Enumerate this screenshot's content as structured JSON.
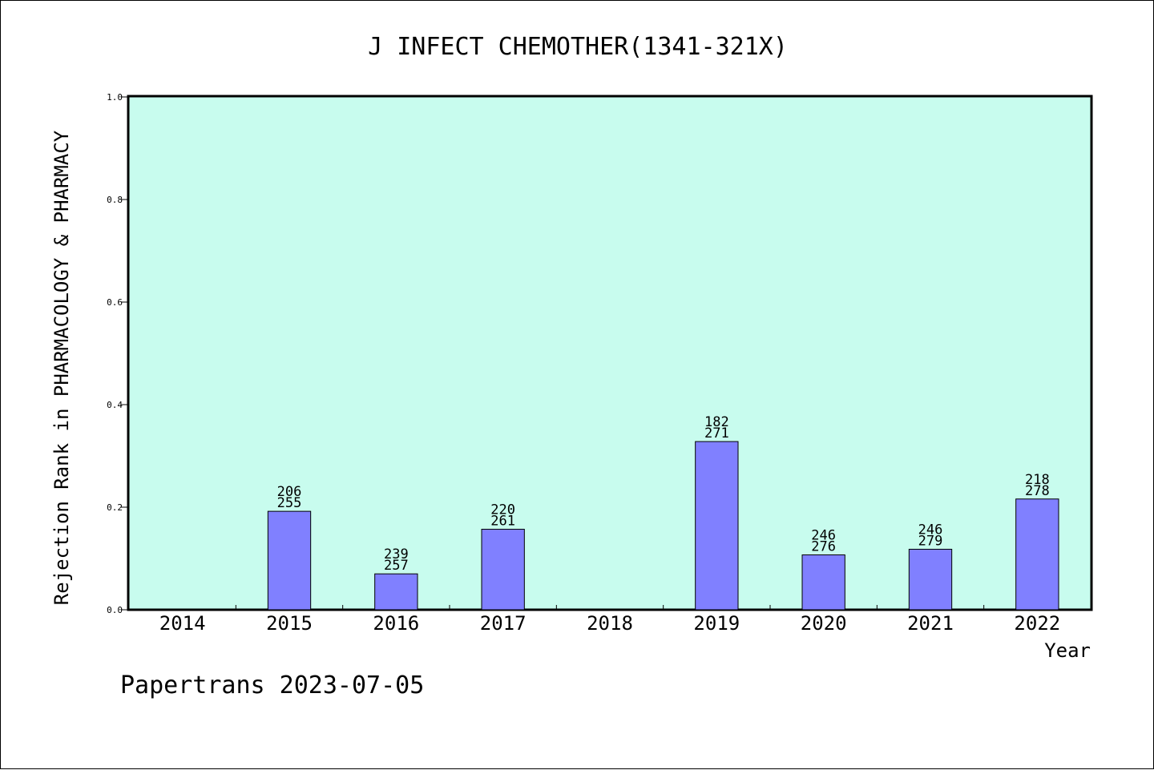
{
  "chart_data": {
    "type": "bar",
    "title": "J INFECT CHEMOTHER(1341-321X)",
    "xlabel": "Year",
    "ylabel": "Rejection Rank in PHARMACOLOGY & PHARMACY",
    "ylim": [
      0.0,
      1.0
    ],
    "yticks": [
      "0.0",
      "0.2",
      "0.4",
      "0.6",
      "0.8",
      "1.0"
    ],
    "categories": [
      "2014",
      "2015",
      "2016",
      "2017",
      "2018",
      "2019",
      "2020",
      "2021",
      "2022"
    ],
    "values": [
      0,
      0.192,
      0.07,
      0.157,
      0,
      0.328,
      0.107,
      0.118,
      0.216
    ],
    "labels": [
      [
        "",
        ""
      ],
      [
        "206",
        "255"
      ],
      [
        "239",
        "257"
      ],
      [
        "220",
        "261"
      ],
      [
        "",
        ""
      ],
      [
        "182",
        "271"
      ],
      [
        "246",
        "276"
      ],
      [
        "246",
        "279"
      ],
      [
        "218",
        "278"
      ]
    ],
    "grid": false,
    "colors": {
      "plot_background": "#c8fcee",
      "bar": "#8080ff",
      "bar_edge": "#000000"
    }
  },
  "footer": "Papertrans 2023-07-05"
}
